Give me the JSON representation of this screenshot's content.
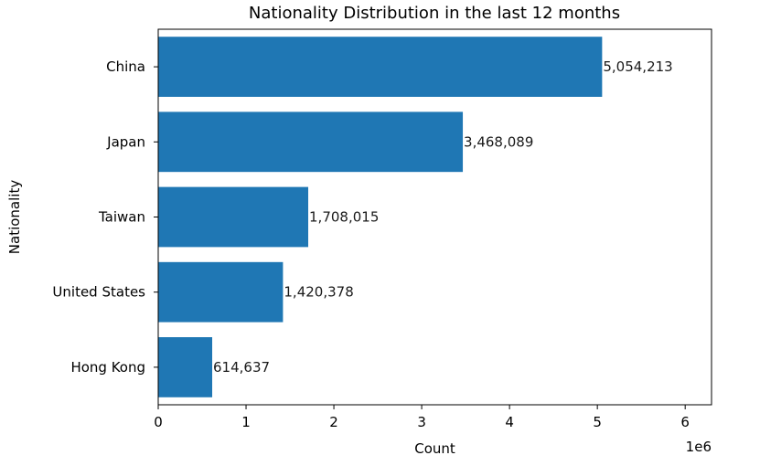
{
  "chart_data": {
    "type": "bar",
    "orientation": "horizontal",
    "title": "Nationality Distribution in the last 12 months",
    "xlabel": "Count",
    "ylabel": "Nationality",
    "x_offset_label": "1e6",
    "xlim": [
      0,
      6300000
    ],
    "x_ticks": [
      0,
      1000000,
      2000000,
      3000000,
      4000000,
      5000000,
      6000000
    ],
    "x_tick_labels": [
      "0",
      "1",
      "2",
      "3",
      "4",
      "5",
      "6"
    ],
    "categories": [
      "China",
      "Japan",
      "Taiwan",
      "United States",
      "Hong Kong"
    ],
    "values": [
      5054213,
      3468089,
      1708015,
      1420378,
      614637
    ],
    "value_labels": [
      "5,054,213",
      "3,468,089",
      "1,708,015",
      "1,420,378",
      "614,637"
    ],
    "bar_color": "#1f77b4",
    "grid": false,
    "legend": "none"
  }
}
